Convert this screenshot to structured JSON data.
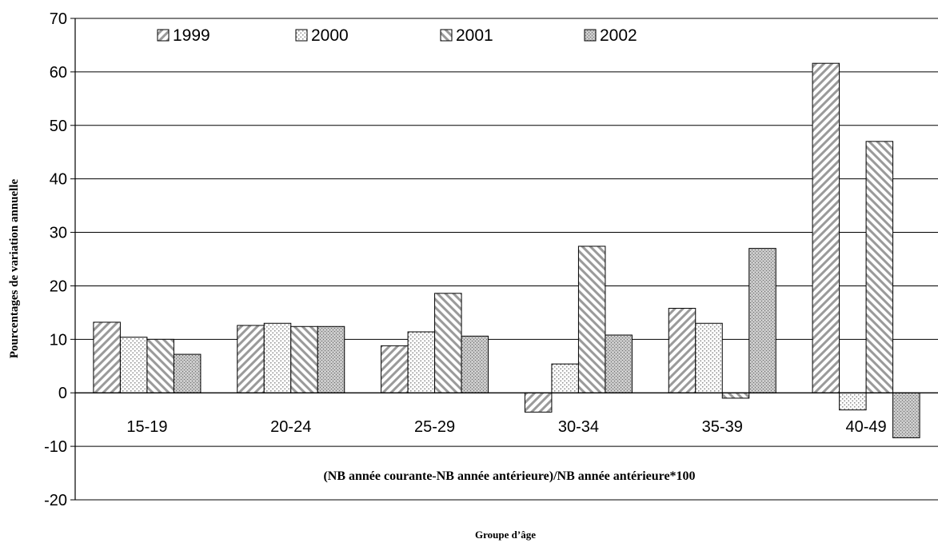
{
  "chart_data": {
    "type": "bar",
    "title": "",
    "ylabel": "Pourcentages de variation annuelle",
    "xlabel": "Groupe d’âge",
    "annotation": "(NB année courante-NB année antérieure)/NB année antérieure*100",
    "categories": [
      "15-19",
      "20-24",
      "25-29",
      "30-34",
      "35-39",
      "40-49"
    ],
    "ylim": [
      -20,
      70
    ],
    "yticks": [
      70,
      60,
      50,
      40,
      30,
      20,
      10,
      0,
      -10,
      -20
    ],
    "grid": true,
    "legend_position": "top",
    "series": [
      {
        "name": "1999",
        "pattern": "diagonal-up",
        "values": [
          13.2,
          12.6,
          8.8,
          -3.6,
          15.8,
          61.6
        ]
      },
      {
        "name": "2000",
        "pattern": "dots",
        "values": [
          10.4,
          13.0,
          11.4,
          5.4,
          13.0,
          -3.2
        ]
      },
      {
        "name": "2001",
        "pattern": "diagonal-down",
        "values": [
          10.0,
          12.4,
          18.6,
          27.4,
          -1.0,
          47.0
        ]
      },
      {
        "name": "2002",
        "pattern": "dense-grey",
        "values": [
          7.2,
          12.4,
          10.6,
          10.8,
          27.0,
          -8.4
        ]
      }
    ]
  }
}
